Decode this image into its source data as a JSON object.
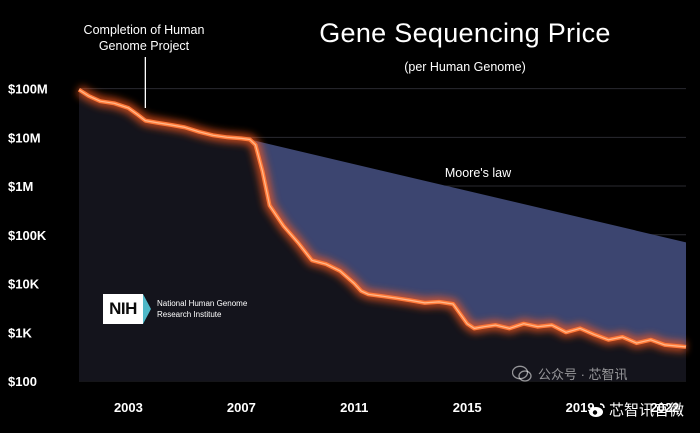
{
  "chart_data": {
    "type": "area",
    "title": "Gene Sequencing Price",
    "subtitle": "(per Human Genome)",
    "xlabel": "",
    "ylabel": "",
    "y_scale": "log",
    "x_range": [
      2001.25,
      2022.75
    ],
    "ylim": [
      100,
      150000000
    ],
    "x_ticks": [
      2003,
      2007,
      2011,
      2015,
      2019,
      2022
    ],
    "x_tick_labels": [
      "2003",
      "2007",
      "2011",
      "2015",
      "2019",
      "2022"
    ],
    "y_ticks": [
      100,
      1000,
      10000,
      100000,
      1000000,
      10000000,
      100000000
    ],
    "y_tick_labels": [
      "$100",
      "$1K",
      "$10K",
      "$100K",
      "$1M",
      "$10M",
      "$100M"
    ],
    "grid": true,
    "series": [
      {
        "name": "",
        "x": [
          2001.25,
          2001.6,
          2002.0,
          2002.5,
          2003.0,
          2003.3,
          2003.6,
          2004.0,
          2004.5,
          2005.0,
          2005.5,
          2006.0,
          2006.5,
          2007.0,
          2007.3,
          2007.5,
          2007.75,
          2008.0,
          2008.5,
          2009.0,
          2009.5,
          2010.0,
          2010.5,
          2011.0,
          2011.25,
          2011.5,
          2012.0,
          2012.5,
          2013.0,
          2013.5,
          2014.0,
          2014.5,
          2015.0,
          2015.25,
          2015.6,
          2016.0,
          2016.5,
          2017.0,
          2017.5,
          2018.0,
          2018.5,
          2019.0,
          2019.5,
          2020.0,
          2020.5,
          2021.0,
          2021.5,
          2022.0,
          2022.75
        ],
        "values": [
          95000000,
          70000000,
          55000000,
          50000000,
          40000000,
          30000000,
          22000000,
          20000000,
          18000000,
          16000000,
          13000000,
          11000000,
          10000000,
          9500000,
          9000000,
          7000000,
          2000000,
          400000,
          150000,
          70000,
          30000,
          25000,
          18000,
          10000,
          7000,
          6000,
          5500,
          5000,
          4500,
          4000,
          4200,
          3800,
          1500,
          1200,
          1300,
          1400,
          1200,
          1500,
          1300,
          1400,
          1000,
          1200,
          900,
          700,
          800,
          600,
          700,
          550,
          500
        ]
      },
      {
        "name": "Moore's law",
        "x": [
          2007.3,
          2022.75
        ],
        "values": [
          9000000,
          70000
        ]
      }
    ],
    "annotations": [
      {
        "text": "Completion of Human Genome Project",
        "x": 2003.6
      },
      {
        "text": "Moore's law"
      }
    ],
    "colors": {
      "price_line": "#ff7a3a",
      "price_glow": "#ff5a1a",
      "price_fill": "#14141c",
      "moores_fill": "#3c4570",
      "background": "#000000",
      "grid": "#2a2a30"
    }
  },
  "annotations": {
    "milestone_line1": "Completion of Human",
    "milestone_line2": "Genome Project",
    "moores_law": "Moore's law"
  },
  "logo": {
    "mark": "NIH",
    "name_line1": "National Human Genome",
    "name_line2": "Research Institute"
  },
  "watermark": {
    "icon": "wechat-icon",
    "text": "公众号 · 芯智讯"
  },
  "overlay": {
    "icon": "weibo-icon",
    "text": "芯智讯官微"
  }
}
